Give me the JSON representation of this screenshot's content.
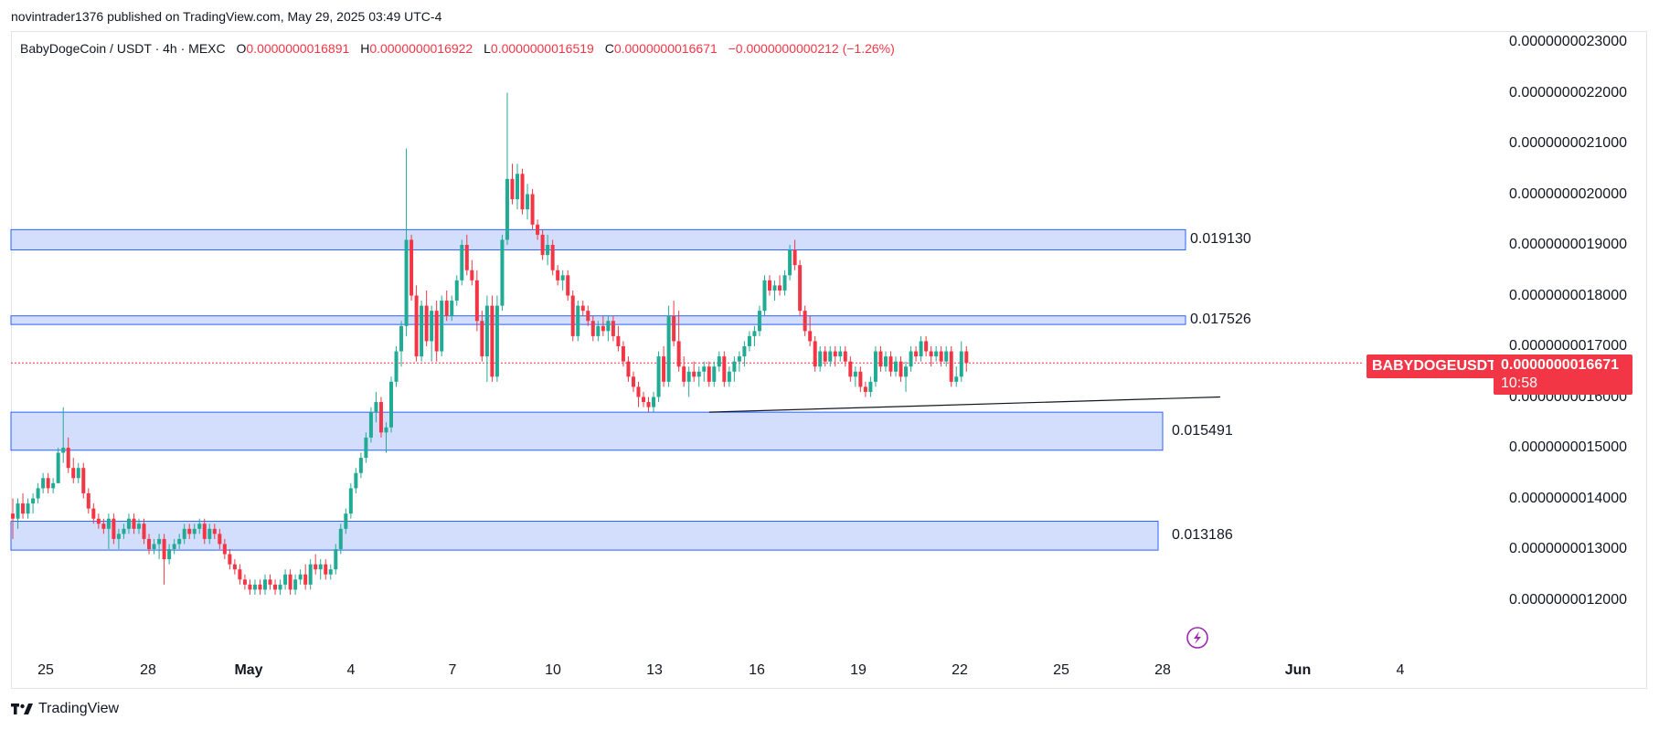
{
  "header": {
    "published": "novintrader1376 published on TradingView.com, May 29, 2025 03:49 UTC-4"
  },
  "legend": {
    "symbol": "BabyDogeCoin / USDT · 4h · MEXC",
    "o_label": "O",
    "o_value": "0.0000000016891",
    "h_label": "H",
    "h_value": "0.0000000016922",
    "l_label": "L",
    "l_value": "0.0000000016519",
    "c_label": "C",
    "c_value": "0.0000000016671",
    "change": "−0.0000000000212 (−1.26%)"
  },
  "price_scale": {
    "ticks": [
      "0.0000000023000",
      "0.0000000022000",
      "0.0000000021000",
      "0.0000000020000",
      "0.0000000019000",
      "0.0000000018000",
      "0.0000000017000",
      "0.0000000016000",
      "0.0000000015000",
      "0.0000000014000",
      "0.0000000013000",
      "0.0000000012000"
    ]
  },
  "time_scale": {
    "ticks": [
      {
        "label": "25",
        "bold": false
      },
      {
        "label": "28",
        "bold": false
      },
      {
        "label": "May",
        "bold": true
      },
      {
        "label": "4",
        "bold": false
      },
      {
        "label": "7",
        "bold": false
      },
      {
        "label": "10",
        "bold": false
      },
      {
        "label": "13",
        "bold": false
      },
      {
        "label": "16",
        "bold": false
      },
      {
        "label": "19",
        "bold": false
      },
      {
        "label": "22",
        "bold": false
      },
      {
        "label": "25",
        "bold": false
      },
      {
        "label": "28",
        "bold": false
      },
      {
        "label": "Jun",
        "bold": true
      },
      {
        "label": "4",
        "bold": false
      }
    ]
  },
  "zones": [
    {
      "label": "0.019130",
      "low": 1.89,
      "high": 1.93
    },
    {
      "label": "0.017526",
      "low": 1.743,
      "high": 1.76
    },
    {
      "label": "0.015491",
      "low": 1.495,
      "high": 1.57
    },
    {
      "label": "0.013186",
      "low": 1.298,
      "high": 1.355
    }
  ],
  "symbol_tag": "BABYDOGEUSDT",
  "price_tag": {
    "price": "0.0000000016671",
    "countdown": "10:58"
  },
  "brand": "TradingView",
  "colors": {
    "up": "#22ab94",
    "down": "#f23645",
    "zone_fill": "#d1dcfc",
    "zone_border": "#2962ff",
    "current_price_line": "#f23645"
  },
  "chart_data": {
    "type": "candlestick",
    "unit_note": "prices ×1e-9 USDT",
    "ylim": [
      1.1,
      2.35
    ],
    "current_price": 1.6671,
    "trendline": {
      "start": [
        1.57
      ],
      "end": [
        1.6
      ]
    },
    "candles": [
      [
        1.37,
        1.4,
        1.32,
        1.36
      ],
      [
        1.36,
        1.4,
        1.34,
        1.39
      ],
      [
        1.39,
        1.41,
        1.36,
        1.37
      ],
      [
        1.37,
        1.4,
        1.36,
        1.39
      ],
      [
        1.39,
        1.41,
        1.37,
        1.4
      ],
      [
        1.4,
        1.43,
        1.39,
        1.42
      ],
      [
        1.42,
        1.45,
        1.41,
        1.44
      ],
      [
        1.44,
        1.45,
        1.41,
        1.42
      ],
      [
        1.42,
        1.44,
        1.41,
        1.43
      ],
      [
        1.43,
        1.5,
        1.43,
        1.49
      ],
      [
        1.49,
        1.58,
        1.47,
        1.5
      ],
      [
        1.5,
        1.52,
        1.45,
        1.46
      ],
      [
        1.46,
        1.48,
        1.43,
        1.44
      ],
      [
        1.44,
        1.47,
        1.43,
        1.46
      ],
      [
        1.46,
        1.47,
        1.4,
        1.41
      ],
      [
        1.41,
        1.42,
        1.37,
        1.38
      ],
      [
        1.38,
        1.39,
        1.35,
        1.36
      ],
      [
        1.36,
        1.37,
        1.34,
        1.35
      ],
      [
        1.35,
        1.36,
        1.33,
        1.34
      ],
      [
        1.34,
        1.37,
        1.3,
        1.36
      ],
      [
        1.36,
        1.37,
        1.31,
        1.32
      ],
      [
        1.32,
        1.34,
        1.3,
        1.33
      ],
      [
        1.33,
        1.35,
        1.32,
        1.34
      ],
      [
        1.34,
        1.37,
        1.33,
        1.36
      ],
      [
        1.36,
        1.37,
        1.33,
        1.34
      ],
      [
        1.34,
        1.36,
        1.33,
        1.35
      ],
      [
        1.35,
        1.36,
        1.31,
        1.32
      ],
      [
        1.32,
        1.33,
        1.29,
        1.3
      ],
      [
        1.3,
        1.32,
        1.29,
        1.31
      ],
      [
        1.31,
        1.33,
        1.28,
        1.32
      ],
      [
        1.32,
        1.33,
        1.23,
        1.28
      ],
      [
        1.28,
        1.31,
        1.27,
        1.3
      ],
      [
        1.3,
        1.32,
        1.29,
        1.31
      ],
      [
        1.31,
        1.33,
        1.3,
        1.32
      ],
      [
        1.32,
        1.35,
        1.31,
        1.34
      ],
      [
        1.34,
        1.35,
        1.32,
        1.33
      ],
      [
        1.33,
        1.35,
        1.32,
        1.34
      ],
      [
        1.34,
        1.36,
        1.33,
        1.35
      ],
      [
        1.35,
        1.36,
        1.31,
        1.32
      ],
      [
        1.32,
        1.35,
        1.31,
        1.34
      ],
      [
        1.34,
        1.35,
        1.32,
        1.33
      ],
      [
        1.33,
        1.34,
        1.3,
        1.31
      ],
      [
        1.31,
        1.32,
        1.28,
        1.29
      ],
      [
        1.29,
        1.3,
        1.26,
        1.27
      ],
      [
        1.27,
        1.28,
        1.25,
        1.26
      ],
      [
        1.26,
        1.27,
        1.23,
        1.24
      ],
      [
        1.24,
        1.25,
        1.22,
        1.23
      ],
      [
        1.23,
        1.24,
        1.21,
        1.22
      ],
      [
        1.22,
        1.24,
        1.21,
        1.23
      ],
      [
        1.23,
        1.24,
        1.21,
        1.22
      ],
      [
        1.22,
        1.25,
        1.21,
        1.24
      ],
      [
        1.24,
        1.25,
        1.22,
        1.23
      ],
      [
        1.23,
        1.24,
        1.21,
        1.22
      ],
      [
        1.22,
        1.24,
        1.21,
        1.23
      ],
      [
        1.23,
        1.26,
        1.22,
        1.25
      ],
      [
        1.25,
        1.26,
        1.21,
        1.22
      ],
      [
        1.22,
        1.25,
        1.21,
        1.24
      ],
      [
        1.24,
        1.26,
        1.23,
        1.25
      ],
      [
        1.25,
        1.27,
        1.22,
        1.23
      ],
      [
        1.23,
        1.28,
        1.22,
        1.27
      ],
      [
        1.27,
        1.29,
        1.25,
        1.26
      ],
      [
        1.26,
        1.28,
        1.24,
        1.27
      ],
      [
        1.27,
        1.28,
        1.24,
        1.25
      ],
      [
        1.25,
        1.27,
        1.24,
        1.26
      ],
      [
        1.26,
        1.31,
        1.25,
        1.3
      ],
      [
        1.3,
        1.35,
        1.29,
        1.34
      ],
      [
        1.34,
        1.38,
        1.33,
        1.37
      ],
      [
        1.37,
        1.43,
        1.36,
        1.42
      ],
      [
        1.42,
        1.46,
        1.41,
        1.45
      ],
      [
        1.45,
        1.49,
        1.44,
        1.48
      ],
      [
        1.48,
        1.53,
        1.47,
        1.52
      ],
      [
        1.52,
        1.58,
        1.51,
        1.57
      ],
      [
        1.57,
        1.61,
        1.55,
        1.59
      ],
      [
        1.59,
        1.6,
        1.52,
        1.53
      ],
      [
        1.53,
        1.55,
        1.49,
        1.54
      ],
      [
        1.54,
        1.64,
        1.53,
        1.63
      ],
      [
        1.63,
        1.7,
        1.62,
        1.69
      ],
      [
        1.69,
        1.75,
        1.66,
        1.74
      ],
      [
        1.74,
        2.09,
        1.72,
        1.91
      ],
      [
        1.91,
        1.92,
        1.79,
        1.8
      ],
      [
        1.8,
        1.82,
        1.67,
        1.68
      ],
      [
        1.68,
        1.79,
        1.67,
        1.78
      ],
      [
        1.78,
        1.81,
        1.7,
        1.71
      ],
      [
        1.71,
        1.78,
        1.67,
        1.77
      ],
      [
        1.77,
        1.79,
        1.67,
        1.69
      ],
      [
        1.69,
        1.8,
        1.68,
        1.79
      ],
      [
        1.79,
        1.81,
        1.75,
        1.76
      ],
      [
        1.76,
        1.8,
        1.75,
        1.79
      ],
      [
        1.79,
        1.84,
        1.78,
        1.83
      ],
      [
        1.83,
        1.91,
        1.82,
        1.9
      ],
      [
        1.9,
        1.92,
        1.84,
        1.85
      ],
      [
        1.85,
        1.87,
        1.82,
        1.83
      ],
      [
        1.83,
        1.85,
        1.73,
        1.75
      ],
      [
        1.75,
        1.77,
        1.67,
        1.68
      ],
      [
        1.68,
        1.8,
        1.63,
        1.78
      ],
      [
        1.78,
        1.8,
        1.63,
        1.64
      ],
      [
        1.64,
        1.8,
        1.63,
        1.78
      ],
      [
        1.78,
        1.92,
        1.77,
        1.91
      ],
      [
        1.91,
        2.2,
        1.9,
        2.03
      ],
      [
        2.03,
        2.06,
        1.98,
        1.99
      ],
      [
        1.99,
        2.06,
        1.97,
        2.04
      ],
      [
        2.04,
        2.05,
        1.96,
        1.97
      ],
      [
        1.97,
        2.02,
        1.95,
        2.0
      ],
      [
        2.0,
        2.01,
        1.93,
        1.94
      ],
      [
        1.94,
        1.95,
        1.91,
        1.92
      ],
      [
        1.92,
        1.93,
        1.87,
        1.88
      ],
      [
        1.88,
        1.92,
        1.86,
        1.9
      ],
      [
        1.9,
        1.91,
        1.84,
        1.85
      ],
      [
        1.85,
        1.86,
        1.82,
        1.83
      ],
      [
        1.83,
        1.85,
        1.81,
        1.84
      ],
      [
        1.84,
        1.85,
        1.79,
        1.8
      ],
      [
        1.8,
        1.81,
        1.71,
        1.72
      ],
      [
        1.72,
        1.79,
        1.71,
        1.78
      ],
      [
        1.78,
        1.79,
        1.76,
        1.77
      ],
      [
        1.77,
        1.78,
        1.74,
        1.75
      ],
      [
        1.75,
        1.76,
        1.71,
        1.72
      ],
      [
        1.72,
        1.75,
        1.71,
        1.74
      ],
      [
        1.74,
        1.76,
        1.72,
        1.73
      ],
      [
        1.73,
        1.76,
        1.71,
        1.75
      ],
      [
        1.75,
        1.76,
        1.71,
        1.72
      ],
      [
        1.72,
        1.74,
        1.69,
        1.7
      ],
      [
        1.7,
        1.71,
        1.66,
        1.67
      ],
      [
        1.67,
        1.68,
        1.63,
        1.64
      ],
      [
        1.64,
        1.65,
        1.61,
        1.62
      ],
      [
        1.62,
        1.63,
        1.58,
        1.6
      ],
      [
        1.6,
        1.61,
        1.58,
        1.59
      ],
      [
        1.59,
        1.6,
        1.57,
        1.58
      ],
      [
        1.58,
        1.61,
        1.57,
        1.6
      ],
      [
        1.6,
        1.69,
        1.59,
        1.68
      ],
      [
        1.68,
        1.7,
        1.62,
        1.63
      ],
      [
        1.63,
        1.78,
        1.62,
        1.76
      ],
      [
        1.76,
        1.79,
        1.7,
        1.71
      ],
      [
        1.71,
        1.77,
        1.65,
        1.66
      ],
      [
        1.66,
        1.68,
        1.62,
        1.63
      ],
      [
        1.63,
        1.66,
        1.6,
        1.65
      ],
      [
        1.65,
        1.67,
        1.63,
        1.64
      ],
      [
        1.64,
        1.66,
        1.62,
        1.65
      ],
      [
        1.65,
        1.67,
        1.63,
        1.66
      ],
      [
        1.66,
        1.67,
        1.62,
        1.63
      ],
      [
        1.63,
        1.67,
        1.62,
        1.66
      ],
      [
        1.66,
        1.69,
        1.65,
        1.68
      ],
      [
        1.68,
        1.69,
        1.62,
        1.63
      ],
      [
        1.63,
        1.66,
        1.62,
        1.65
      ],
      [
        1.65,
        1.68,
        1.63,
        1.67
      ],
      [
        1.67,
        1.69,
        1.65,
        1.68
      ],
      [
        1.68,
        1.71,
        1.66,
        1.7
      ],
      [
        1.7,
        1.73,
        1.69,
        1.72
      ],
      [
        1.72,
        1.74,
        1.7,
        1.73
      ],
      [
        1.73,
        1.78,
        1.72,
        1.77
      ],
      [
        1.77,
        1.84,
        1.76,
        1.83
      ],
      [
        1.83,
        1.84,
        1.8,
        1.81
      ],
      [
        1.81,
        1.83,
        1.79,
        1.82
      ],
      [
        1.82,
        1.84,
        1.8,
        1.81
      ],
      [
        1.81,
        1.85,
        1.8,
        1.84
      ],
      [
        1.84,
        1.9,
        1.83,
        1.89
      ],
      [
        1.89,
        1.91,
        1.85,
        1.86
      ],
      [
        1.86,
        1.87,
        1.76,
        1.77
      ],
      [
        1.77,
        1.78,
        1.72,
        1.73
      ],
      [
        1.73,
        1.76,
        1.7,
        1.71
      ],
      [
        1.71,
        1.72,
        1.65,
        1.66
      ],
      [
        1.66,
        1.7,
        1.65,
        1.69
      ],
      [
        1.69,
        1.7,
        1.66,
        1.67
      ],
      [
        1.67,
        1.7,
        1.66,
        1.69
      ],
      [
        1.69,
        1.7,
        1.66,
        1.68
      ],
      [
        1.68,
        1.7,
        1.67,
        1.69
      ],
      [
        1.69,
        1.7,
        1.66,
        1.67
      ],
      [
        1.67,
        1.68,
        1.63,
        1.64
      ],
      [
        1.64,
        1.66,
        1.62,
        1.65
      ],
      [
        1.65,
        1.66,
        1.61,
        1.62
      ],
      [
        1.62,
        1.63,
        1.6,
        1.61
      ],
      [
        1.61,
        1.64,
        1.6,
        1.63
      ],
      [
        1.63,
        1.7,
        1.62,
        1.69
      ],
      [
        1.69,
        1.7,
        1.65,
        1.66
      ],
      [
        1.66,
        1.69,
        1.65,
        1.68
      ],
      [
        1.68,
        1.69,
        1.64,
        1.65
      ],
      [
        1.65,
        1.68,
        1.64,
        1.67
      ],
      [
        1.67,
        1.68,
        1.63,
        1.64
      ],
      [
        1.64,
        1.67,
        1.61,
        1.66
      ],
      [
        1.66,
        1.7,
        1.65,
        1.69
      ],
      [
        1.69,
        1.7,
        1.67,
        1.68
      ],
      [
        1.68,
        1.72,
        1.67,
        1.71
      ],
      [
        1.71,
        1.72,
        1.68,
        1.69
      ],
      [
        1.69,
        1.7,
        1.66,
        1.68
      ],
      [
        1.68,
        1.7,
        1.67,
        1.69
      ],
      [
        1.69,
        1.7,
        1.66,
        1.67
      ],
      [
        1.67,
        1.7,
        1.66,
        1.69
      ],
      [
        1.69,
        1.7,
        1.62,
        1.63
      ],
      [
        1.63,
        1.66,
        1.62,
        1.64
      ],
      [
        1.64,
        1.71,
        1.63,
        1.69
      ],
      [
        1.69,
        1.7,
        1.65,
        1.667
      ]
    ]
  }
}
